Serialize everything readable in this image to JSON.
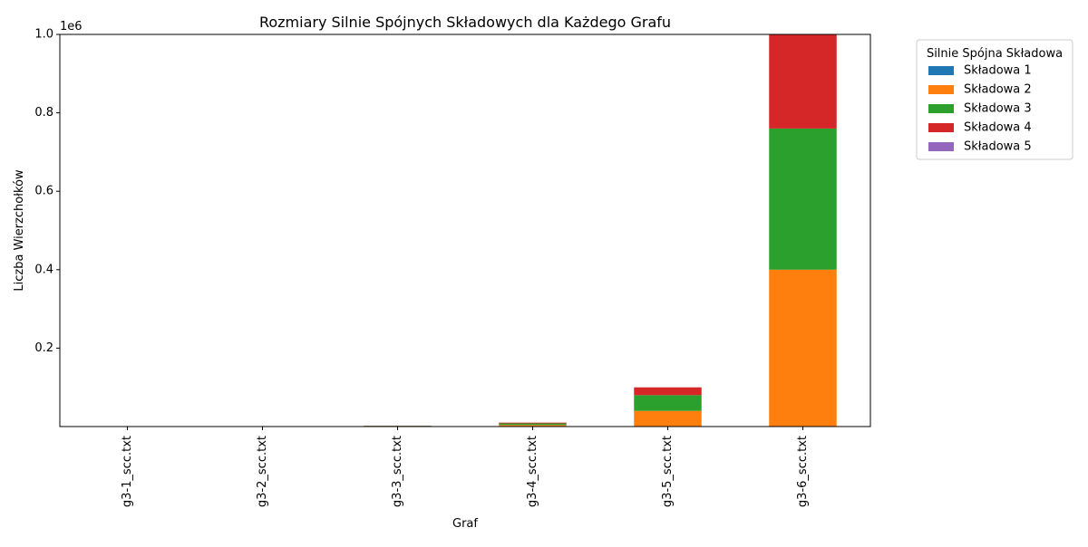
{
  "chart_data": {
    "type": "bar",
    "stacked": true,
    "title": "Rozmiary Silnie Spójnych Składowych dla Każdego Grafu",
    "xlabel": "Graf",
    "ylabel": "Liczba Wierzchołków",
    "y_offset_label": "1e6",
    "ylim": [
      0,
      1000000
    ],
    "y_ticks": [
      {
        "value": 200000,
        "label": "0.2"
      },
      {
        "value": 400000,
        "label": "0.4"
      },
      {
        "value": 600000,
        "label": "0.6"
      },
      {
        "value": 800000,
        "label": "0.8"
      },
      {
        "value": 1000000,
        "label": "1.0"
      }
    ],
    "grid": false,
    "legend_title": "Silnie Spójna Składowa",
    "legend_position": "outside-top-right",
    "categories": [
      "g3-1_scc.txt",
      "g3-2_scc.txt",
      "g3-3_scc.txt",
      "g3-4_scc.txt",
      "g3-5_scc.txt",
      "g3-6_scc.txt"
    ],
    "series": [
      {
        "name": "Składowa 1",
        "color": "#1f77b4",
        "values": [
          0,
          0,
          0,
          0,
          0,
          0
        ]
      },
      {
        "name": "Składowa 2",
        "color": "#ff7f0e",
        "values": [
          40,
          400,
          800,
          4000,
          40000,
          400000
        ]
      },
      {
        "name": "Składowa 3",
        "color": "#2ca02c",
        "values": [
          40,
          360,
          1000,
          4000,
          40000,
          360000
        ]
      },
      {
        "name": "Składowa 4",
        "color": "#d62728",
        "values": [
          20,
          240,
          400,
          2000,
          20000,
          240000
        ]
      },
      {
        "name": "Składowa 5",
        "color": "#9467bd",
        "values": [
          0,
          0,
          0,
          0,
          0,
          0
        ]
      }
    ]
  }
}
